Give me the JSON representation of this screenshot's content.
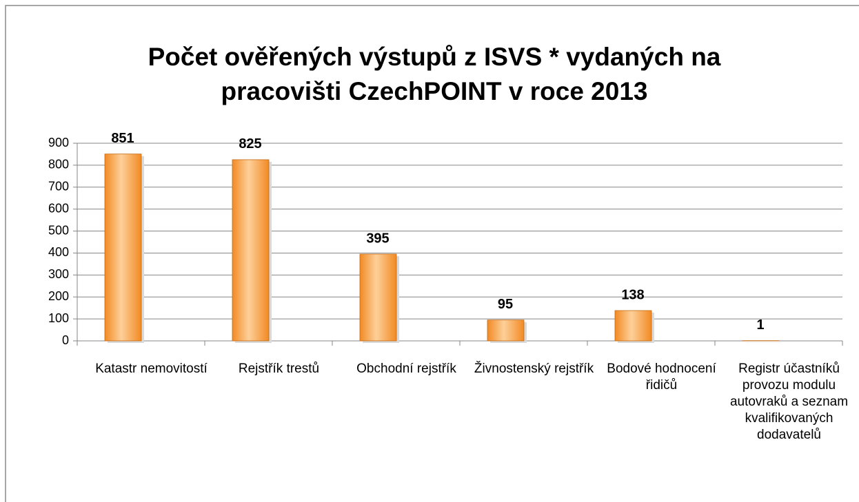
{
  "chart_data": {
    "type": "bar",
    "title": "Počet ověřených výstupů z ISVS * vydaných na pracovišti CzechPOINT v roce 2013",
    "categories": [
      "Katastr nemovitostí",
      "Rejstřík trestů",
      "Obchodní rejstřík",
      "Živnostenský rejstřík",
      "Bodové hodnocení řidičů",
      "Registr účastníků provozu modulu autovraků a seznam kvalifikovaných dodavatelů"
    ],
    "values": [
      851,
      825,
      395,
      95,
      138,
      1
    ],
    "color": "#f28a24",
    "ylim": [
      0,
      900
    ],
    "yticks": [
      0,
      100,
      200,
      300,
      400,
      500,
      600,
      700,
      800,
      900
    ],
    "grid": true
  }
}
